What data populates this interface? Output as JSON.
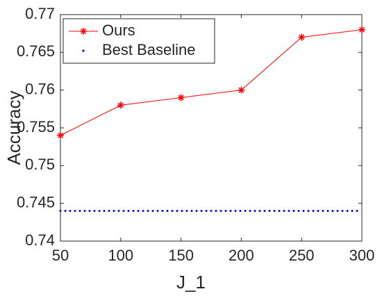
{
  "chart_data": {
    "type": "line",
    "x": [
      50,
      100,
      150,
      200,
      250,
      300
    ],
    "series": [
      {
        "name": "Ours",
        "color": "#ff0000",
        "linestyle": "solid",
        "marker": "star",
        "values": [
          0.754,
          0.758,
          0.759,
          0.76,
          0.767,
          0.768
        ]
      },
      {
        "name": "Best Baseline",
        "color": "#0000ff",
        "linestyle": "dotted",
        "marker": "none",
        "values": [
          0.744,
          0.744,
          0.744,
          0.744,
          0.744,
          0.744
        ]
      }
    ],
    "xlabel": "J_1",
    "ylabel": "Accuracy",
    "xlim": [
      50,
      300
    ],
    "xticks": [
      50,
      100,
      150,
      200,
      250,
      300
    ],
    "ylim": [
      0.74,
      0.77
    ],
    "yticks": [
      0.74,
      0.745,
      0.75,
      0.755,
      0.76,
      0.765,
      0.77
    ],
    "legend": "upper left"
  }
}
